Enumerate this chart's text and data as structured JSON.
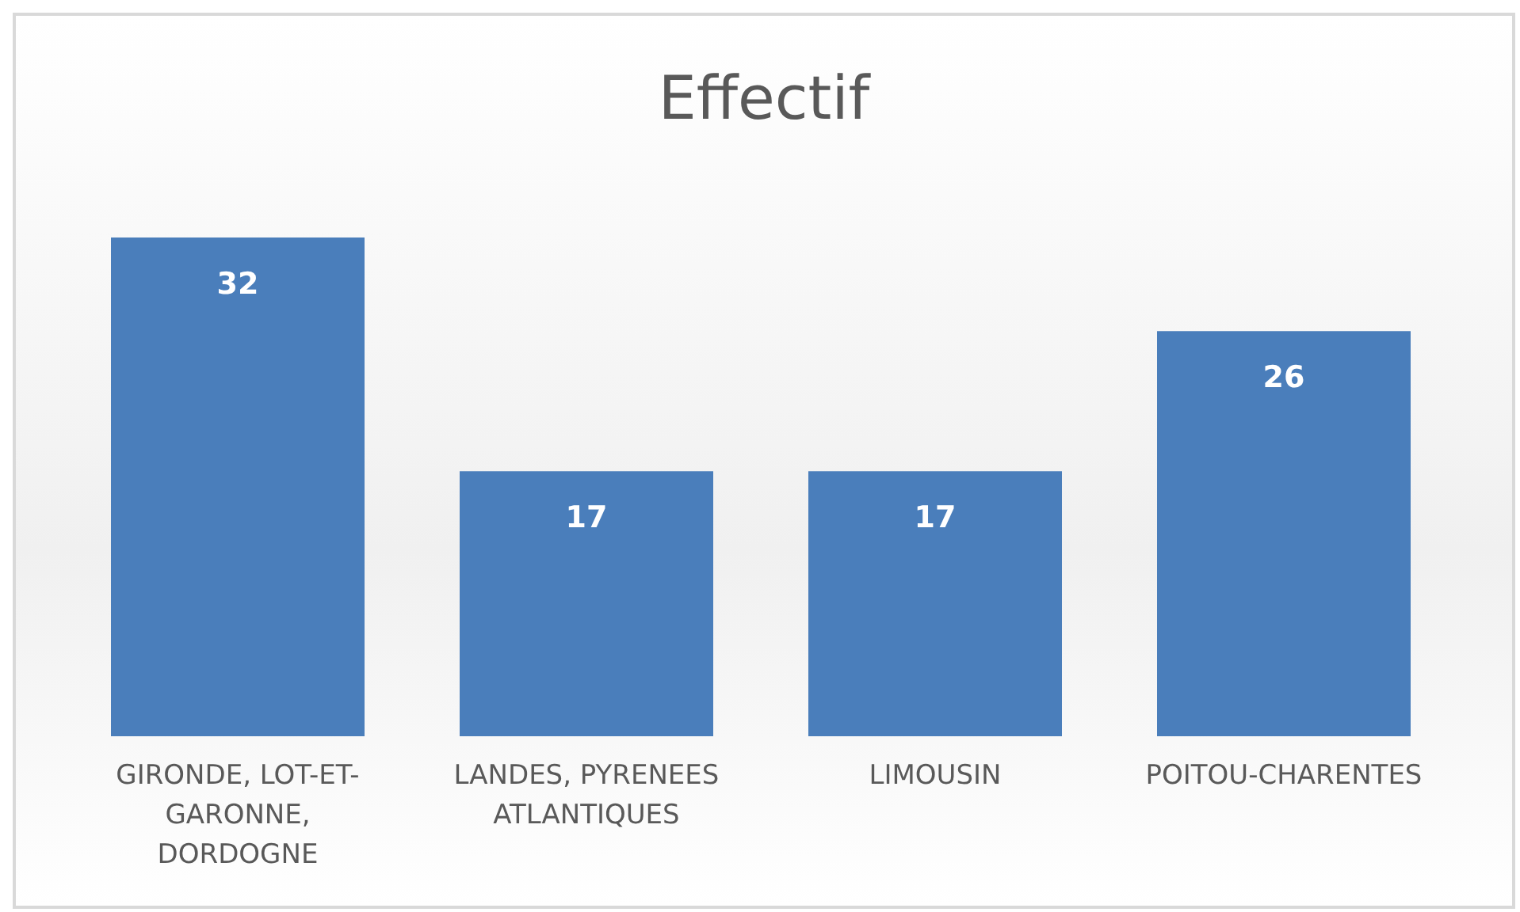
{
  "chart_data": {
    "type": "bar",
    "title": "Effectif",
    "categories": [
      "GIRONDE, LOT-ET-GARONNE, DORDOGNE",
      "LANDES, PYRENEES ATLANTIQUES",
      "LIMOUSIN",
      "POITOU-CHARENTES"
    ],
    "values": [
      32,
      17,
      17,
      26
    ],
    "color": "#4a7ebb",
    "data_labels": true
  }
}
